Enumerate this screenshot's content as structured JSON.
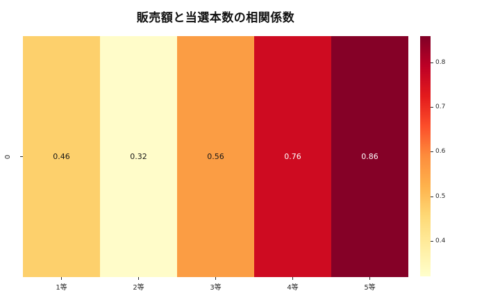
{
  "chart_data": {
    "type": "heatmap",
    "title": "販売額と当選本数の相関係数",
    "categories": [
      "1等",
      "2等",
      "3等",
      "4等",
      "5等"
    ],
    "row_labels": [
      "0"
    ],
    "values": [
      [
        0.46,
        0.32,
        0.56,
        0.76,
        0.86
      ]
    ],
    "value_labels": [
      "0.46",
      "0.32",
      "0.56",
      "0.76",
      "0.86"
    ],
    "cell_colors": [
      "#fdd06c",
      "#fffcc9",
      "#fb9d44",
      "#ce0b21",
      "#850127"
    ],
    "cell_text_colors": [
      "#151515",
      "#151515",
      "#151515",
      "#ffffff",
      "#ffffff"
    ],
    "colormap": "YlOrRd",
    "vmin": 0.32,
    "vmax": 0.86,
    "colorbar": {
      "position": "right",
      "ticks": [
        "0.8",
        "0.7",
        "0.6",
        "0.5",
        "0.4"
      ],
      "gradient_stops_bottom_to_top": [
        "#ffffcc",
        "#ffeda0",
        "#fed976",
        "#feb24c",
        "#fd8d3c",
        "#fc4e2a",
        "#e31a1c",
        "#bd0026",
        "#800026"
      ]
    },
    "grid": false,
    "xlabel": "",
    "ylabel": ""
  }
}
